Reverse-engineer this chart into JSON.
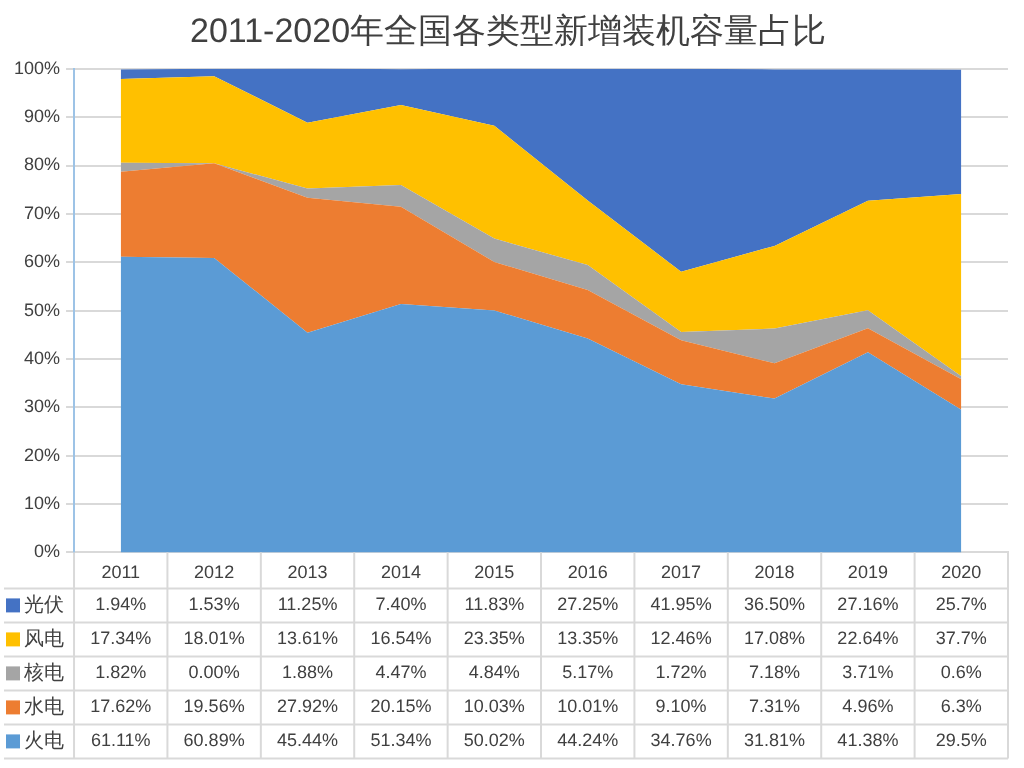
{
  "chart_data": {
    "type": "area",
    "title": "2011-2020年全国各类型新增装机容量占比",
    "categories": [
      "2011",
      "2012",
      "2013",
      "2014",
      "2015",
      "2016",
      "2017",
      "2018",
      "2019",
      "2020"
    ],
    "stacked": true,
    "grid": "y",
    "legend": "bottom",
    "ylim": [
      0,
      100
    ],
    "yticks": [
      {
        "value": 0,
        "label": "0%"
      },
      {
        "value": 10,
        "label": "10%"
      },
      {
        "value": 20,
        "label": "20%"
      },
      {
        "value": 30,
        "label": "30%"
      },
      {
        "value": 40,
        "label": "40%"
      },
      {
        "value": 50,
        "label": "50%"
      },
      {
        "value": 60,
        "label": "60%"
      },
      {
        "value": 70,
        "label": "70%"
      },
      {
        "value": 80,
        "label": "80%"
      },
      {
        "value": 90,
        "label": "90%"
      },
      {
        "value": 100,
        "label": "100%"
      }
    ],
    "series": [
      {
        "name": "火电",
        "color": "#5b9bd5",
        "values": [
          61.11,
          60.89,
          45.44,
          51.34,
          50.02,
          44.24,
          34.76,
          31.81,
          41.38,
          29.5
        ],
        "value_labels": [
          "61.11%",
          "60.89%",
          "45.44%",
          "51.34%",
          "50.02%",
          "44.24%",
          "34.76%",
          "31.81%",
          "41.38%",
          "29.5%"
        ]
      },
      {
        "name": "水电",
        "color": "#ed7d31",
        "values": [
          17.62,
          19.56,
          27.92,
          20.15,
          10.03,
          10.01,
          9.1,
          7.31,
          4.96,
          6.3
        ],
        "value_labels": [
          "17.62%",
          "19.56%",
          "27.92%",
          "20.15%",
          "10.03%",
          "10.01%",
          "9.10%",
          "7.31%",
          "4.96%",
          "6.3%"
        ]
      },
      {
        "name": "核电",
        "color": "#a5a5a5",
        "values": [
          1.82,
          0.0,
          1.88,
          4.47,
          4.84,
          5.17,
          1.72,
          7.18,
          3.71,
          0.6
        ],
        "value_labels": [
          "1.82%",
          "0.00%",
          "1.88%",
          "4.47%",
          "4.84%",
          "5.17%",
          "1.72%",
          "7.18%",
          "3.71%",
          "0.6%"
        ]
      },
      {
        "name": "风电",
        "color": "#ffc000",
        "values": [
          17.34,
          18.01,
          13.61,
          16.54,
          23.35,
          13.35,
          12.46,
          17.08,
          22.64,
          37.7
        ],
        "value_labels": [
          "17.34%",
          "18.01%",
          "13.61%",
          "16.54%",
          "23.35%",
          "13.35%",
          "12.46%",
          "17.08%",
          "22.64%",
          "37.7%"
        ]
      },
      {
        "name": "光伏",
        "color": "#4472c4",
        "values": [
          1.94,
          1.53,
          11.25,
          7.4,
          11.83,
          27.25,
          41.95,
          36.5,
          27.16,
          25.7
        ],
        "value_labels": [
          "1.94%",
          "1.53%",
          "11.25%",
          "7.40%",
          "11.83%",
          "27.25%",
          "41.95%",
          "36.50%",
          "27.16%",
          "25.7%"
        ]
      }
    ]
  }
}
